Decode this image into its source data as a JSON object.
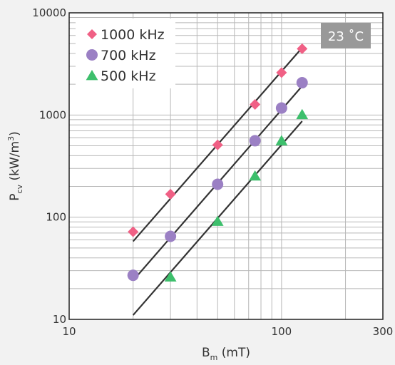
{
  "chart_data": {
    "type": "scatter",
    "xscale": "log",
    "yscale": "log",
    "xlim": [
      10,
      300
    ],
    "ylim": [
      10,
      10000
    ],
    "grid": true,
    "xlabel": {
      "main": "B",
      "sub": "m",
      "suffix": " (mT)"
    },
    "ylabel": {
      "main": "P",
      "sub": "cv",
      "pre": " (kW/m",
      "sup": "3",
      "post": ")"
    },
    "x_ticks": [
      {
        "value": 10,
        "label": "10"
      },
      {
        "value": 100,
        "label": "100"
      },
      {
        "value": 300,
        "label": "300"
      }
    ],
    "y_ticks": [
      {
        "value": 10,
        "label": "10"
      },
      {
        "value": 100,
        "label": "100"
      },
      {
        "value": 1000,
        "label": "1000"
      },
      {
        "value": 10000,
        "label": "10000"
      }
    ],
    "legend_position": "top-left",
    "annotation": {
      "text": "23 ˚C",
      "position": "top-right",
      "background": "#999999",
      "color": "#ffffff"
    },
    "line_color": "#333333",
    "series": [
      {
        "name": "1000 kHz",
        "marker": "diamond",
        "color": "#f06085",
        "x": [
          20,
          30,
          50,
          75,
          100,
          125
        ],
        "y": [
          72,
          168,
          510,
          1270,
          2600,
          4450
        ],
        "fit": {
          "x": [
            20,
            125
          ],
          "y": [
            58,
            4550
          ]
        }
      },
      {
        "name": "700 kHz",
        "marker": "circle",
        "color": "#9b80c4",
        "x": [
          20,
          30,
          50,
          75,
          100,
          125
        ],
        "y": [
          27,
          65,
          210,
          560,
          1170,
          2070
        ],
        "fit": {
          "x": [
            20,
            125
          ],
          "y": [
            24,
            1920
          ]
        }
      },
      {
        "name": "500 kHz",
        "marker": "triangle",
        "color": "#3dbf6c",
        "x": [
          30,
          50,
          75,
          100,
          125
        ],
        "y": [
          26,
          91,
          253,
          560,
          1010
        ],
        "fit": {
          "x": [
            20,
            125
          ],
          "y": [
            11,
            870
          ]
        }
      }
    ]
  }
}
